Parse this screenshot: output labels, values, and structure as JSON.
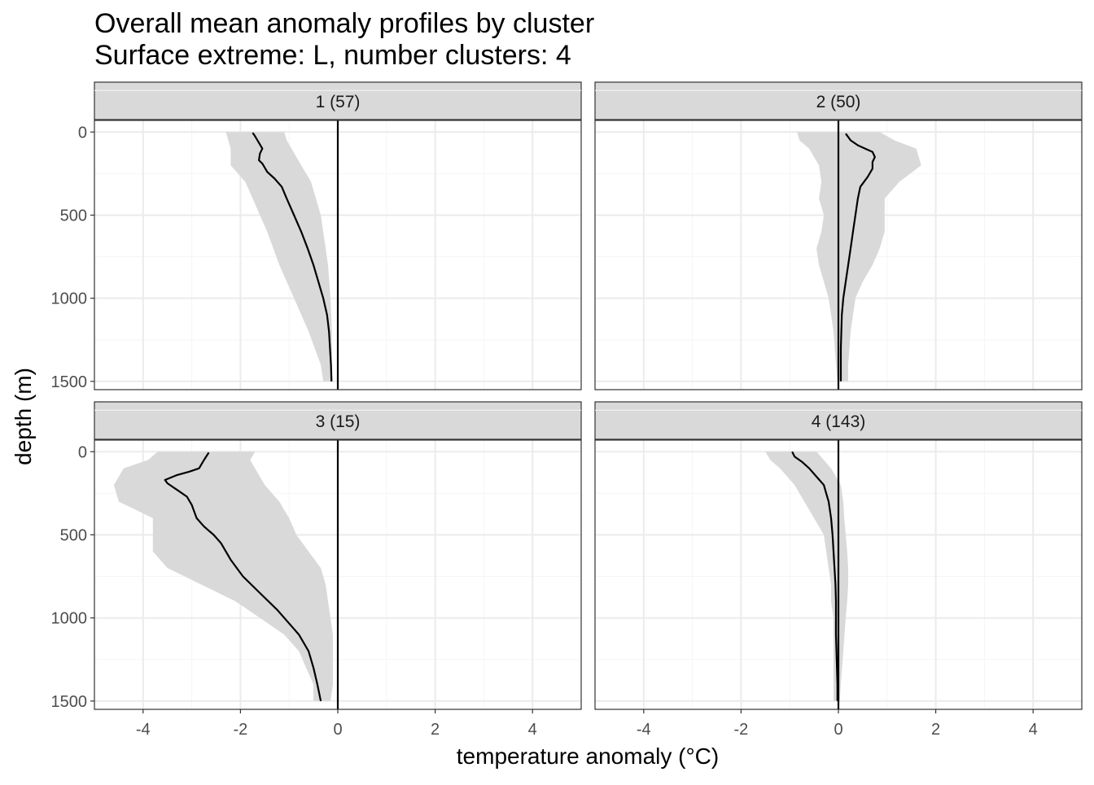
{
  "chart_data": {
    "type": "line",
    "title": "Overall mean anomaly profiles by cluster",
    "subtitle": "Surface extreme: L, number clusters: 4",
    "xlabel": "temperature anomaly (°C)",
    "ylabel": "depth (m)",
    "xlim": [
      -5,
      5
    ],
    "ylim": [
      1550,
      -70
    ],
    "x_ticks": [
      -4,
      -2,
      0,
      2,
      4
    ],
    "x_tick_labels": [
      "-4",
      "-2",
      "0",
      "2",
      "4"
    ],
    "y_ticks": [
      0,
      500,
      1000,
      1500
    ],
    "y_tick_labels": [
      "0",
      "500",
      "1000",
      "1500"
    ],
    "reference_line_x": 0,
    "panels": [
      {
        "label": "1 (57)",
        "mean": [
          [
            -1.75,
            5
          ],
          [
            -1.7,
            25
          ],
          [
            -1.65,
            50
          ],
          [
            -1.6,
            75
          ],
          [
            -1.55,
            100
          ],
          [
            -1.6,
            130
          ],
          [
            -1.62,
            170
          ],
          [
            -1.55,
            190
          ],
          [
            -1.45,
            240
          ],
          [
            -1.3,
            280
          ],
          [
            -1.15,
            330
          ],
          [
            -1.05,
            400
          ],
          [
            -0.9,
            500
          ],
          [
            -0.75,
            600
          ],
          [
            -0.62,
            700
          ],
          [
            -0.5,
            800
          ],
          [
            -0.4,
            900
          ],
          [
            -0.3,
            1000
          ],
          [
            -0.22,
            1100
          ],
          [
            -0.18,
            1200
          ],
          [
            -0.16,
            1300
          ],
          [
            -0.14,
            1400
          ],
          [
            -0.13,
            1500
          ]
        ],
        "band": [
          [
            -2.3,
            0,
            -1.1
          ],
          [
            -2.25,
            50,
            -1.05
          ],
          [
            -2.2,
            100,
            -0.95
          ],
          [
            -2.2,
            200,
            -0.75
          ],
          [
            -1.9,
            300,
            -0.55
          ],
          [
            -1.75,
            400,
            -0.45
          ],
          [
            -1.6,
            500,
            -0.35
          ],
          [
            -1.45,
            600,
            -0.3
          ],
          [
            -1.2,
            800,
            -0.2
          ],
          [
            -0.9,
            1000,
            -0.15
          ],
          [
            -0.6,
            1200,
            -0.12
          ],
          [
            -0.35,
            1400,
            -0.12
          ],
          [
            -0.3,
            1500,
            -0.1
          ]
        ]
      },
      {
        "label": "2 (50)",
        "mean": [
          [
            0.15,
            10
          ],
          [
            0.25,
            50
          ],
          [
            0.4,
            80
          ],
          [
            0.55,
            100
          ],
          [
            0.7,
            120
          ],
          [
            0.75,
            150
          ],
          [
            0.7,
            180
          ],
          [
            0.7,
            220
          ],
          [
            0.6,
            270
          ],
          [
            0.45,
            330
          ],
          [
            0.4,
            400
          ],
          [
            0.35,
            500
          ],
          [
            0.3,
            600
          ],
          [
            0.25,
            700
          ],
          [
            0.2,
            800
          ],
          [
            0.15,
            900
          ],
          [
            0.1,
            1000
          ],
          [
            0.07,
            1100
          ],
          [
            0.06,
            1200
          ],
          [
            0.05,
            1300
          ],
          [
            0.05,
            1400
          ],
          [
            0.05,
            1500
          ]
        ],
        "band": [
          [
            -0.85,
            0,
            0.85
          ],
          [
            -0.8,
            50,
            1.15
          ],
          [
            -0.6,
            100,
            1.6
          ],
          [
            -0.4,
            200,
            1.7
          ],
          [
            -0.35,
            300,
            1.25
          ],
          [
            -0.4,
            400,
            0.95
          ],
          [
            -0.3,
            500,
            0.95
          ],
          [
            -0.35,
            600,
            0.95
          ],
          [
            -0.45,
            700,
            0.85
          ],
          [
            -0.4,
            800,
            0.7
          ],
          [
            -0.3,
            900,
            0.5
          ],
          [
            -0.2,
            1000,
            0.35
          ],
          [
            -0.1,
            1200,
            0.25
          ],
          [
            -0.05,
            1400,
            0.2
          ],
          [
            -0.02,
            1500,
            0.2
          ]
        ]
      },
      {
        "label": "3 (15)",
        "mean": [
          [
            -2.65,
            5
          ],
          [
            -2.75,
            50
          ],
          [
            -2.85,
            100
          ],
          [
            -3.05,
            120
          ],
          [
            -3.3,
            140
          ],
          [
            -3.55,
            170
          ],
          [
            -3.5,
            190
          ],
          [
            -3.3,
            230
          ],
          [
            -3.1,
            270
          ],
          [
            -3.0,
            320
          ],
          [
            -2.9,
            400
          ],
          [
            -2.75,
            450
          ],
          [
            -2.55,
            500
          ],
          [
            -2.4,
            550
          ],
          [
            -2.2,
            650
          ],
          [
            -1.95,
            750
          ],
          [
            -1.6,
            850
          ],
          [
            -1.25,
            950
          ],
          [
            -0.95,
            1050
          ],
          [
            -0.8,
            1100
          ],
          [
            -0.6,
            1200
          ],
          [
            -0.5,
            1300
          ],
          [
            -0.42,
            1400
          ],
          [
            -0.35,
            1500
          ]
        ],
        "band": [
          [
            -3.7,
            0,
            -1.7
          ],
          [
            -3.9,
            50,
            -1.8
          ],
          [
            -4.4,
            100,
            -1.7
          ],
          [
            -4.6,
            200,
            -1.5
          ],
          [
            -4.5,
            300,
            -1.2
          ],
          [
            -3.8,
            400,
            -1.0
          ],
          [
            -3.8,
            500,
            -0.85
          ],
          [
            -3.8,
            600,
            -0.6
          ],
          [
            -3.5,
            700,
            -0.35
          ],
          [
            -2.8,
            800,
            -0.25
          ],
          [
            -2.1,
            900,
            -0.2
          ],
          [
            -1.6,
            1000,
            -0.15
          ],
          [
            -1.1,
            1100,
            -0.1
          ],
          [
            -0.8,
            1200,
            -0.1
          ],
          [
            -0.65,
            1300,
            -0.1
          ],
          [
            -0.5,
            1400,
            -0.1
          ],
          [
            -0.5,
            1500,
            -0.15
          ]
        ]
      },
      {
        "label": "4 (143)",
        "mean": [
          [
            -0.95,
            0
          ],
          [
            -0.9,
            30
          ],
          [
            -0.75,
            60
          ],
          [
            -0.6,
            100
          ],
          [
            -0.45,
            150
          ],
          [
            -0.3,
            200
          ],
          [
            -0.25,
            250
          ],
          [
            -0.2,
            300
          ],
          [
            -0.15,
            400
          ],
          [
            -0.12,
            500
          ],
          [
            -0.1,
            600
          ],
          [
            -0.08,
            700
          ],
          [
            -0.06,
            800
          ],
          [
            -0.05,
            900
          ],
          [
            -0.05,
            1000
          ],
          [
            -0.05,
            1100
          ],
          [
            -0.04,
            1200
          ],
          [
            -0.03,
            1300
          ],
          [
            -0.02,
            1400
          ],
          [
            -0.02,
            1500
          ]
        ],
        "band": [
          [
            -1.5,
            0,
            -0.45
          ],
          [
            -1.4,
            50,
            -0.3
          ],
          [
            -1.2,
            100,
            -0.15
          ],
          [
            -0.9,
            200,
            0.05
          ],
          [
            -0.7,
            300,
            0.1
          ],
          [
            -0.5,
            400,
            0.12
          ],
          [
            -0.3,
            500,
            0.15
          ],
          [
            -0.25,
            600,
            0.18
          ],
          [
            -0.2,
            700,
            0.2
          ],
          [
            -0.15,
            800,
            0.2
          ],
          [
            -0.15,
            900,
            0.18
          ],
          [
            -0.1,
            1000,
            0.15
          ],
          [
            -0.1,
            1200,
            0.1
          ],
          [
            -0.1,
            1400,
            0.05
          ],
          [
            -0.1,
            1500,
            0.03
          ]
        ]
      }
    ],
    "colors": {
      "strip_fill": "#d9d9d9",
      "band_fill": "#d9d9d9",
      "line": "#000000",
      "grid_major": "#ebebeb",
      "grid_minor": "#f5f5f5",
      "panel_border": "#333333",
      "tick_text": "#4d4d4d"
    }
  }
}
